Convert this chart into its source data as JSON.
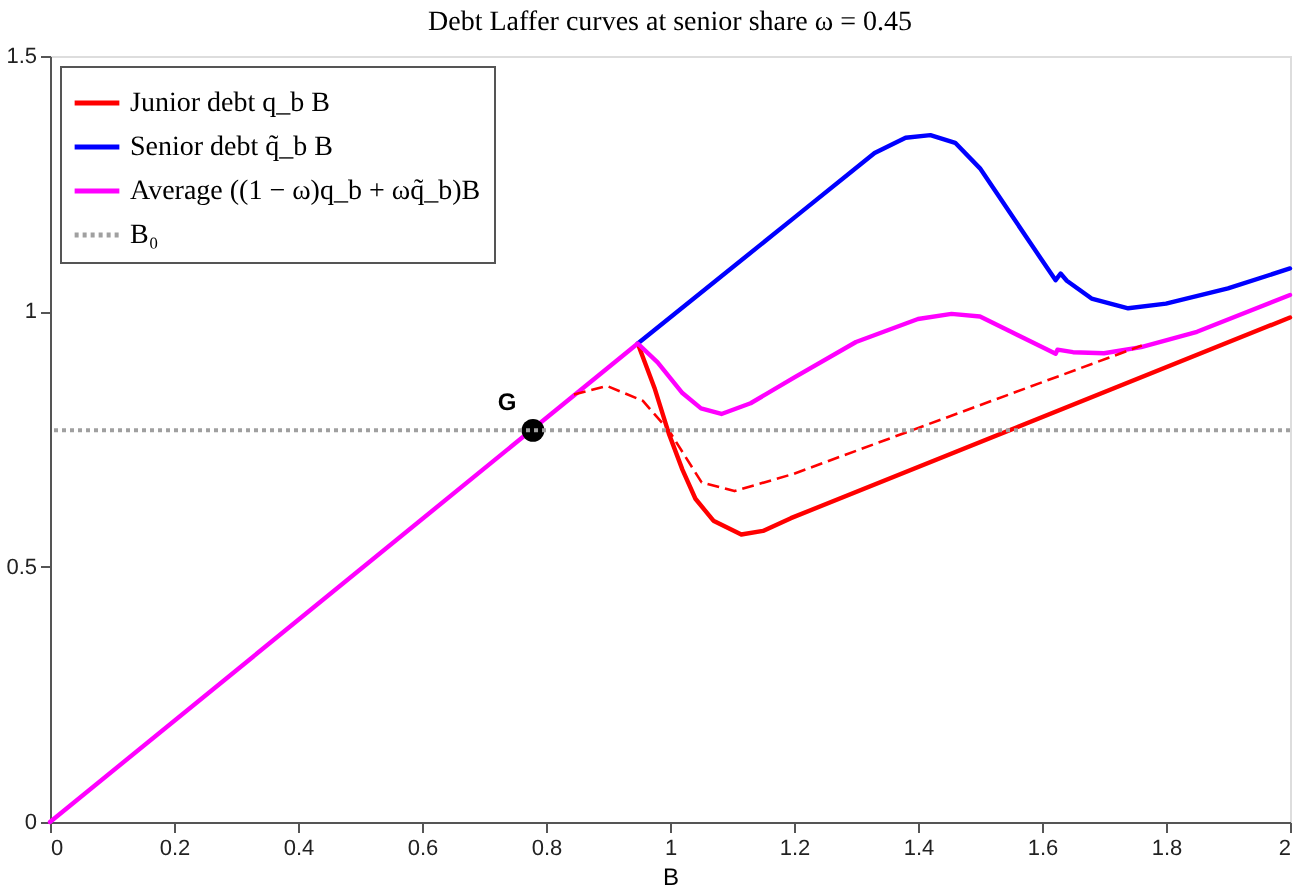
{
  "chart_data": {
    "type": "line",
    "title": "Debt Laffer curves at senior share ω = 0.45",
    "xlabel": "B",
    "xlim": [
      0,
      2
    ],
    "ylim": [
      0,
      1.5
    ],
    "xticks": [
      0,
      0.2,
      0.4,
      0.6,
      0.8,
      1,
      1.2,
      1.4,
      1.6,
      1.8,
      2
    ],
    "yticks": [
      0,
      0.5,
      1,
      1.5
    ],
    "grid": false,
    "legend": "top left",
    "series": [
      {
        "name": "Junior debt q_b B",
        "color": "#ff0000",
        "line_style": "solid",
        "x": [
          0.948,
          0.975,
          0.998,
          1.02,
          1.041,
          1.07,
          1.115,
          1.15,
          1.195,
          2
        ],
        "values": [
          0.937,
          0.85,
          0.761,
          0.69,
          0.633,
          0.59,
          0.563,
          0.57,
          0.595,
          0.988
        ]
      },
      {
        "name": "Senior debt q̃_b B",
        "color": "#0000ff",
        "line_style": "solid",
        "x": [
          0.948,
          1.2,
          1.33,
          1.38,
          1.42,
          1.46,
          1.5,
          1.55,
          1.6,
          1.622,
          1.63,
          1.64,
          1.68,
          1.739,
          1.8,
          1.9,
          2
        ],
        "values": [
          0.937,
          1.183,
          1.31,
          1.34,
          1.345,
          1.33,
          1.28,
          1.19,
          1.1,
          1.061,
          1.074,
          1.06,
          1.025,
          1.006,
          1.015,
          1.045,
          1.084
        ]
      },
      {
        "name": "Average ((1 − ω)q_b + ωq̃_b)B",
        "color": "#ff00ff",
        "line_style": "solid",
        "x": [
          0,
          0.948,
          0.98,
          1.02,
          1.05,
          1.083,
          1.13,
          1.2,
          1.3,
          1.4,
          1.454,
          1.5,
          1.55,
          1.6,
          1.622,
          1.625,
          1.65,
          1.7,
          1.76,
          1.85,
          2
        ],
        "values": [
          0,
          0.937,
          0.9,
          0.84,
          0.81,
          0.799,
          0.82,
          0.87,
          0.94,
          0.985,
          0.995,
          0.99,
          0.96,
          0.93,
          0.917,
          0.925,
          0.92,
          0.918,
          0.93,
          0.96,
          1.032
        ]
      },
      {
        "color": "#ff0000",
        "line_style": "dashed",
        "x": [
          0.845,
          0.898,
          0.956,
          0.998,
          1.051,
          1.104,
          1.2,
          1.761
        ],
        "values": [
          0.837,
          0.854,
          0.825,
          0.767,
          0.665,
          0.648,
          0.682,
          0.933
        ]
      },
      {
        "type": "scatter",
        "color": "#000000",
        "marker": "circle",
        "x": [
          0.779
        ],
        "values": [
          0.767
        ]
      }
    ],
    "ref_lines": [
      {
        "axis": "y",
        "value": 0.767,
        "label": "B₀",
        "color": "#a0a0a0",
        "line_style": "dotted"
      }
    ],
    "annotations": [
      {
        "text": "G",
        "x": 0.779,
        "y": 0.767
      }
    ]
  }
}
